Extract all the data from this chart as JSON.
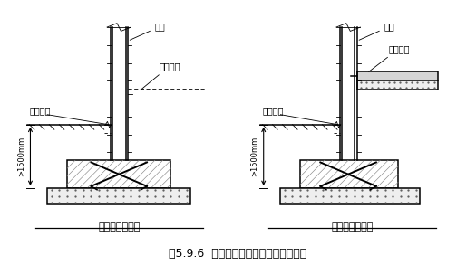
{
  "title": "图5.9.6  墙体与基础、室内地面层板连接",
  "left_label": "墙体与基础铰接",
  "right_label": "墙体与基础铰接",
  "line_color": "#000000",
  "dash_color": "#555555",
  "font_size_title": 9,
  "font_size_label": 8,
  "font_size_annot": 7
}
